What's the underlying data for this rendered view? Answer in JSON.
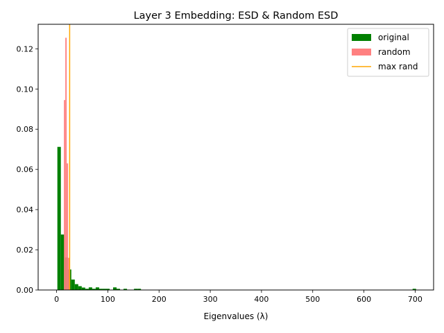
{
  "chart_data": {
    "type": "histogram",
    "title": "Layer 3 Embedding: ESD & Random ESD",
    "xlabel": "Eigenvalues (λ)",
    "ylabel": "",
    "xlim": [
      -36,
      736
    ],
    "ylim": [
      0,
      0.1322
    ],
    "x_ticks": [
      0,
      100,
      200,
      300,
      400,
      500,
      600,
      700
    ],
    "y_ticks": [
      0.0,
      0.02,
      0.04,
      0.06,
      0.08,
      0.1,
      0.12
    ],
    "y_tick_labels": [
      "0.00",
      "0.02",
      "0.04",
      "0.06",
      "0.08",
      "0.10",
      "0.12"
    ],
    "grid": false,
    "legend_position": "top-right",
    "legend": [
      {
        "label": "original",
        "kind": "patch",
        "color": "#008000"
      },
      {
        "label": "random",
        "kind": "patch",
        "color": "#ff8080"
      },
      {
        "label": "max rand",
        "kind": "line",
        "color": "#ffa500"
      }
    ],
    "series": [
      {
        "name": "original",
        "color": "#008000",
        "bin_width": 6.8,
        "bins": [
          {
            "x": 1.5,
            "value": 0.0712
          },
          {
            "x": 8.3,
            "value": 0.0276
          },
          {
            "x": 15.1,
            "value": 0.0162
          },
          {
            "x": 21.9,
            "value": 0.0102
          },
          {
            "x": 28.7,
            "value": 0.0052
          },
          {
            "x": 35.5,
            "value": 0.0029
          },
          {
            "x": 42.3,
            "value": 0.0019
          },
          {
            "x": 49.1,
            "value": 0.0012
          },
          {
            "x": 55.9,
            "value": 0.0006
          },
          {
            "x": 62.7,
            "value": 0.0013
          },
          {
            "x": 69.5,
            "value": 0.0006
          },
          {
            "x": 76.3,
            "value": 0.0013
          },
          {
            "x": 83.1,
            "value": 0.0006
          },
          {
            "x": 89.9,
            "value": 0.0006
          },
          {
            "x": 96.7,
            "value": 0.0006
          },
          {
            "x": 110.3,
            "value": 0.0013
          },
          {
            "x": 117.1,
            "value": 0.0006
          },
          {
            "x": 130.7,
            "value": 0.0006
          },
          {
            "x": 151.1,
            "value": 0.0006
          },
          {
            "x": 157.9,
            "value": 0.0006
          },
          {
            "x": 695.0,
            "value": 0.0006
          }
        ]
      },
      {
        "name": "random",
        "color": "#ff8080",
        "bin_width": 2.7,
        "bins": [
          {
            "x": 14.3,
            "value": 0.0945
          },
          {
            "x": 17.0,
            "value": 0.1255
          },
          {
            "x": 19.7,
            "value": 0.063
          },
          {
            "x": 22.4,
            "value": 0.016
          }
        ]
      }
    ],
    "max_rand": 25.5
  }
}
